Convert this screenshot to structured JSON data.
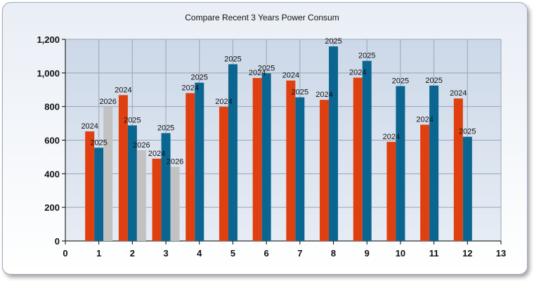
{
  "chart_data": {
    "type": "bar",
    "title": "Compare Recent 3 Years Power Consum",
    "xlabel": "",
    "ylabel": "",
    "xlim": [
      0,
      13
    ],
    "ylim": [
      0,
      1200
    ],
    "x_ticks": [
      0,
      1,
      2,
      3,
      4,
      5,
      6,
      7,
      8,
      9,
      10,
      11,
      12,
      13
    ],
    "y_ticks": [
      0,
      200,
      400,
      600,
      800,
      1000,
      1200
    ],
    "y_tick_labels": [
      "0",
      "200",
      "400",
      "600",
      "800",
      "1,000",
      "1,200"
    ],
    "categories": [
      1,
      2,
      3,
      4,
      5,
      6,
      7,
      8,
      9,
      10,
      11,
      12
    ],
    "grid": true,
    "series": [
      {
        "name": "2024",
        "color": "#e04010",
        "values": [
          652,
          868,
          490,
          880,
          798,
          970,
          955,
          840,
          972,
          590,
          692,
          848
        ]
      },
      {
        "name": "2025",
        "color": "#0a6690",
        "values": [
          555,
          688,
          642,
          942,
          1052,
          998,
          855,
          1158,
          1072,
          922,
          925,
          620
        ]
      },
      {
        "name": "2026",
        "color": "#c2c2c2",
        "values": [
          798,
          540,
          442,
          null,
          null,
          null,
          null,
          null,
          null,
          null,
          null,
          null
        ]
      }
    ]
  }
}
